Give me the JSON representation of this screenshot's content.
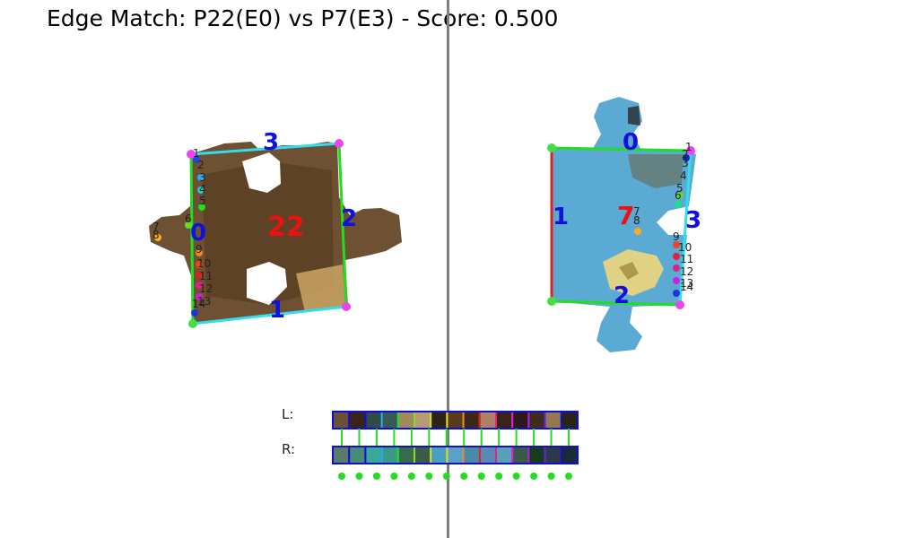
{
  "title": "Edge Match: P22(E0) vs P7(E3) - Score: 0.500",
  "colors": {
    "background": "#ffffff",
    "divider": "#808080",
    "edge_green": "#22dd22",
    "edge_cyan": "#33ddee",
    "edge_red": "#dd2222",
    "corner_magenta": "#ee44ee",
    "corner_green": "#44dd44",
    "edge_label_blue": "#1111dd",
    "piece_label_red": "#ee1111",
    "swatch_border": "#1111cc",
    "match_line": "#22dd22"
  },
  "left_piece": {
    "id_label": "22",
    "edge_labels": [
      "0",
      "1",
      "2",
      "3"
    ],
    "point_labels": [
      "1",
      "2",
      "3",
      "4",
      "5",
      "6",
      "7",
      "8",
      "9",
      "10",
      "11",
      "12",
      "13",
      "14"
    ]
  },
  "right_piece": {
    "id_label": "7",
    "edge_labels": [
      "0",
      "1",
      "2",
      "3"
    ],
    "point_labels": [
      "1",
      "2",
      "3",
      "4",
      "5",
      "6",
      "7",
      "8",
      "9",
      "10",
      "11",
      "12",
      "13",
      "14"
    ]
  },
  "strip": {
    "left_label": "L:",
    "right_label": "R:",
    "left_colors": [
      "#6b5038",
      "#3a2418",
      "#2e4a4a",
      "#365a56",
      "#a08a60",
      "#b49c74",
      "#2c2418",
      "#5a3c1c",
      "#3c2818",
      "#b08066",
      "#3a2418",
      "#301818",
      "#3e2c1c",
      "#967850",
      "#2a2418"
    ],
    "right_colors": [
      "#5a7a6a",
      "#4a8a7a",
      "#3aa898",
      "#3a9a88",
      "#3a6a4a",
      "#3a5a4a",
      "#4aa0c0",
      "#5aa0c8",
      "#4a8aa8",
      "#5a8ab4",
      "#5aa0b8",
      "#3a5a48",
      "#1a3a20",
      "#2a3a48",
      "#1a2a38"
    ],
    "left_border_colors": [
      "#1111cc",
      "#1111cc",
      "#1111cc",
      "#33aaee",
      "#22dd22",
      "#88dd22",
      "#dddd22",
      "#dddd22",
      "#ee8822",
      "#dd2222",
      "#dd2288",
      "#dd22dd",
      "#aa22dd",
      "#6622dd",
      "#1111cc"
    ],
    "match_dots": 14
  }
}
